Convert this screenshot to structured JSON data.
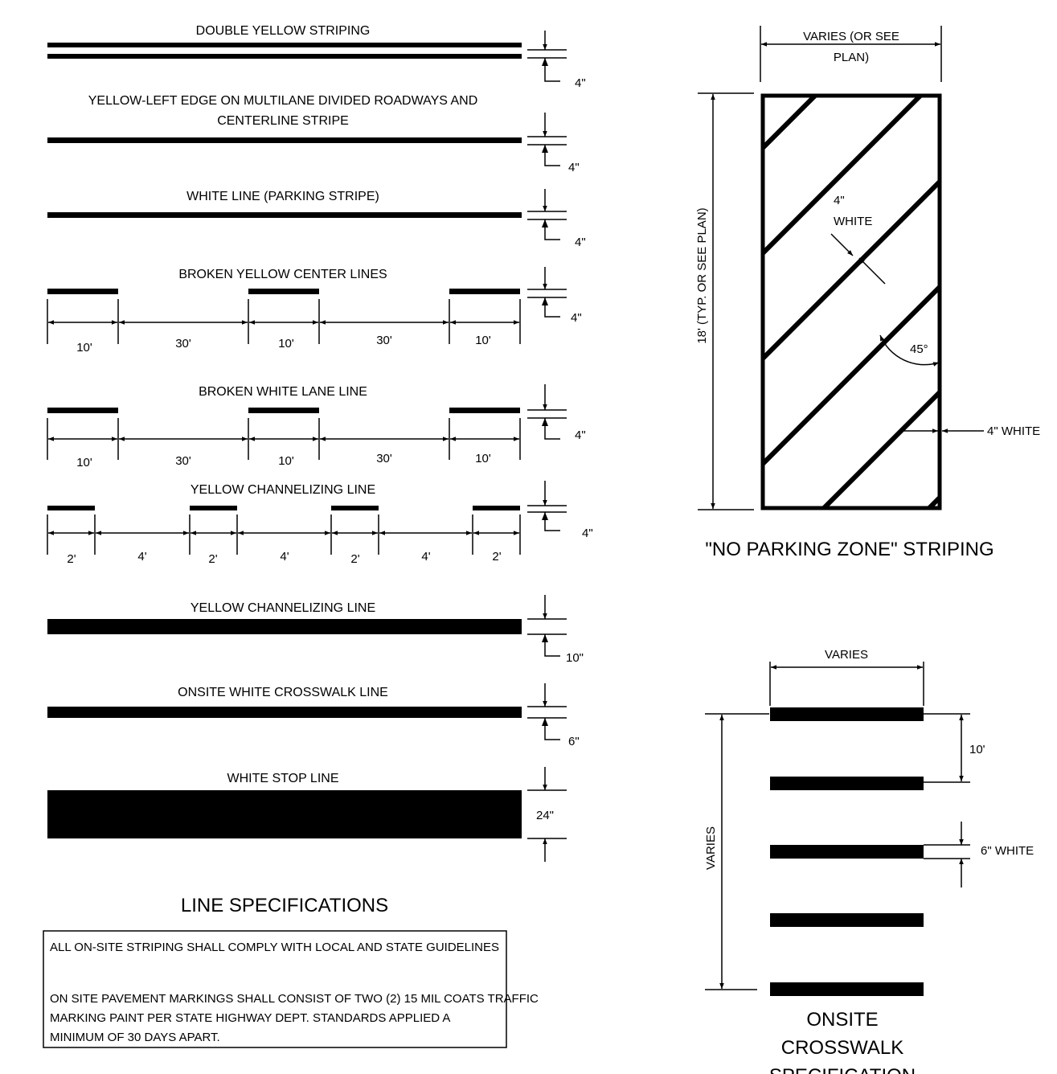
{
  "lines": {
    "double_yellow": {
      "label": "DOUBLE YELLOW STRIPING",
      "width": "4\""
    },
    "yellow_left_edge": {
      "label_line1": "YELLOW-LEFT EDGE ON MULTILANE DIVIDED ROADWAYS AND",
      "label_line2": "CENTERLINE STRIPE",
      "width": "4\""
    },
    "white_line": {
      "label": "WHITE LINE (PARKING STRIPE)",
      "width": "4\""
    },
    "broken_yellow": {
      "label": "BROKEN YELLOW CENTER LINES",
      "width": "4\"",
      "dims": [
        "10'",
        "30'",
        "10'",
        "30'",
        "10'"
      ]
    },
    "broken_white": {
      "label": "BROKEN WHITE LANE LINE",
      "width": "4\"",
      "dims": [
        "10'",
        "30'",
        "10'",
        "30'",
        "10'"
      ]
    },
    "yellow_channel_dashed": {
      "label": "YELLOW CHANNELIZING LINE",
      "width": "4\"",
      "dims": [
        "2'",
        "4'",
        "2'",
        "4'",
        "2'",
        "4'",
        "2'"
      ]
    },
    "yellow_channel_solid": {
      "label": "YELLOW CHANNELIZING LINE",
      "width": "10\""
    },
    "crosswalk_line": {
      "label": "ONSITE WHITE CROSSWALK LINE",
      "width": "6\""
    },
    "stop_line": {
      "label": "WHITE STOP LINE",
      "width": "24\""
    }
  },
  "line_specs_title": "LINE SPECIFICATIONS",
  "notes": {
    "line1": "ALL ON-SITE STRIPING SHALL COMPLY WITH LOCAL AND STATE GUIDELINES",
    "line2": "ON SITE PAVEMENT MARKINGS SHALL CONSIST OF TWO (2) 15 MIL COATS TRAFFIC",
    "line3": "MARKING PAINT PER STATE HIGHWAY DEPT. STANDARDS APPLIED A",
    "line4": "MINIMUM OF 30 DAYS APART."
  },
  "no_parking": {
    "width_line1": "VARIES (OR SEE",
    "width_line2": "PLAN)",
    "height": "18' (TYP. OR SEE PLAN)",
    "stripe_width_line1": "4\"",
    "stripe_width_line2": "WHITE",
    "angle": "45°",
    "border": "4\" WHITE",
    "title": "\"NO PARKING ZONE\" STRIPING"
  },
  "crosswalk": {
    "width": "VARIES",
    "spacing": "10'",
    "bar_width": "6\" WHITE",
    "length": "VARIES",
    "title_line1": "ONSITE",
    "title_line2": "CROSSWALK",
    "title_line3": "SPECIFICATION"
  }
}
